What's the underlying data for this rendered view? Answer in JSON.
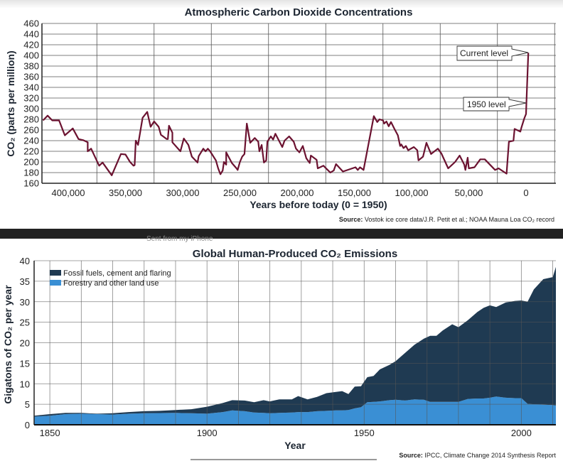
{
  "banner": {
    "text": "Sent from my iPhone",
    "color": "#222222"
  },
  "chart_data": [
    {
      "type": "line",
      "title": "Atmospheric Carbon Dioxide Concentrations",
      "xlabel": "Years before today (0 = 1950)",
      "ylabel": "CO₂ (parts per million)",
      "source_label": "Source:",
      "source": "Vostok ice core data/J.R. Petit et al.; NOAA Mauna Loa CO₂ record",
      "x_unit_note": "x values in thousands of years before 1950",
      "xlim": [
        423,
        -26
      ],
      "ylim": [
        160,
        460
      ],
      "grid": true,
      "line_color": "#6b1230",
      "x_ticks": [
        400,
        350,
        300,
        250,
        200,
        150,
        100,
        50,
        0
      ],
      "x_tick_labels": [
        "400,000",
        "350,000",
        "300,000",
        "250,000",
        "200,000",
        "150,000",
        "100,000",
        "50,000",
        "0"
      ],
      "y_ticks": [
        "160",
        "180",
        "200",
        "220",
        "240",
        "260",
        "280",
        "300",
        "320",
        "340",
        "360",
        "380",
        "400",
        "420",
        "440",
        "460"
      ],
      "annotations": [
        {
          "text": "Current level",
          "x": -2,
          "y": 405
        },
        {
          "text": "1950 level",
          "x": 0,
          "y": 310
        }
      ],
      "x": [
        422,
        418,
        414,
        408,
        403,
        396,
        391,
        387,
        383,
        383,
        380,
        373,
        370,
        362,
        354,
        350,
        346,
        343,
        342,
        341,
        339,
        335,
        331,
        328,
        325,
        321,
        319,
        314,
        313,
        312,
        309,
        309,
        302,
        299,
        295,
        292,
        287,
        286,
        282,
        280,
        278,
        276,
        271,
        269,
        267,
        265,
        264,
        262,
        262,
        257,
        253,
        252,
        250,
        248,
        246,
        244,
        241,
        237,
        234,
        233,
        231,
        229,
        227,
        226,
        223,
        221,
        219,
        213,
        211,
        207,
        203,
        201,
        198,
        195,
        192,
        189,
        188,
        183,
        182,
        177,
        171,
        168,
        166,
        160,
        149,
        147,
        145,
        142,
        133,
        130,
        128,
        125,
        124,
        122,
        120,
        118,
        115,
        112,
        110,
        109,
        107,
        105,
        103,
        98,
        95,
        94,
        90,
        87,
        83,
        77,
        74,
        68,
        62,
        58,
        54,
        53,
        51,
        50,
        45,
        40,
        36,
        27,
        24,
        17,
        15,
        11,
        10,
        5,
        4,
        1.5,
        0,
        -0.3,
        -2
      ],
      "y": [
        278,
        287,
        278,
        278,
        250,
        263,
        243,
        241,
        237,
        220,
        225,
        193,
        199,
        175,
        215,
        214,
        200,
        193,
        194,
        240,
        232,
        283,
        294,
        266,
        276,
        266,
        251,
        243,
        243,
        268,
        255,
        237,
        220,
        244,
        232,
        210,
        199,
        211,
        225,
        220,
        225,
        220,
        203,
        188,
        177,
        184,
        200,
        195,
        218,
        198,
        188,
        185,
        200,
        210,
        215,
        272,
        236,
        245,
        238,
        220,
        232,
        199,
        203,
        238,
        248,
        242,
        253,
        228,
        240,
        248,
        238,
        225,
        218,
        230,
        207,
        198,
        212,
        204,
        188,
        193,
        180,
        184,
        196,
        182,
        190,
        185,
        190,
        185,
        286,
        275,
        280,
        278,
        272,
        276,
        267,
        275,
        262,
        250,
        230,
        233,
        226,
        230,
        222,
        228,
        222,
        203,
        210,
        236,
        215,
        225,
        216,
        188,
        200,
        212,
        195,
        185,
        208,
        188,
        190,
        205,
        205,
        185,
        188,
        178,
        238,
        240,
        262,
        257,
        265,
        282,
        290,
        310,
        405
      ]
    },
    {
      "type": "area",
      "stacked": true,
      "title": "Global Human-Produced CO₂ Emissions",
      "xlabel": "Year",
      "ylabel": "Gigatons of CO₂ per year",
      "source_label": "Source:",
      "source": "IPCC, Climate Change 2014 Synthesis Report",
      "xlim": [
        1845,
        2011
      ],
      "ylim": [
        0,
        40
      ],
      "grid": true,
      "legend_position": "top-left",
      "x_ticks": [
        "1850",
        "1900",
        "1950",
        "2000"
      ],
      "y_ticks": [
        "0",
        "5",
        "10",
        "15",
        "20",
        "25",
        "30",
        "35",
        "40"
      ],
      "x": [
        1845,
        1850,
        1855,
        1860,
        1865,
        1870,
        1875,
        1880,
        1885,
        1890,
        1895,
        1900,
        1905,
        1908,
        1912,
        1915,
        1918,
        1920,
        1923,
        1927,
        1929,
        1932,
        1935,
        1938,
        1941,
        1943,
        1945,
        1947,
        1949,
        1951,
        1953,
        1955,
        1958,
        1960,
        1963,
        1966,
        1969,
        1971,
        1973,
        1975,
        1978,
        1980,
        1983,
        1986,
        1988,
        1990,
        1992,
        1995,
        1998,
        2000,
        2002,
        2004,
        2007,
        2010,
        2011
      ],
      "series": [
        {
          "name": "Forestry and other land use",
          "color": "#3a8fd4",
          "values": [
            2.0,
            2.2,
            2.6,
            2.7,
            2.6,
            2.5,
            2.7,
            2.8,
            2.85,
            2.9,
            2.8,
            2.7,
            3.1,
            3.5,
            3.3,
            3.0,
            2.9,
            2.8,
            2.9,
            3.0,
            3.1,
            3.1,
            3.3,
            3.4,
            3.5,
            3.5,
            3.6,
            4.0,
            4.3,
            5.5,
            5.6,
            5.7,
            6.0,
            6.1,
            5.9,
            6.2,
            6.1,
            5.6,
            5.6,
            5.6,
            5.6,
            5.6,
            6.3,
            6.4,
            6.4,
            6.6,
            6.9,
            6.6,
            6.5,
            6.5,
            5.1,
            5.0,
            4.9,
            4.8,
            4.7
          ]
        },
        {
          "name": "Fossil fuels, cement and flaring",
          "color": "#1f3a52",
          "values": [
            0.2,
            0.4,
            0.3,
            0.2,
            0.1,
            0.3,
            0.4,
            0.5,
            0.55,
            0.7,
            1.0,
            1.7,
            2.2,
            2.5,
            2.6,
            2.5,
            3.1,
            2.9,
            3.3,
            3.2,
            3.9,
            3.1,
            3.5,
            4.3,
            4.5,
            4.7,
            3.9,
            5.3,
            5.1,
            6.1,
            6.3,
            7.8,
            8.6,
            9.4,
            11.6,
            13.3,
            14.9,
            16.1,
            16.1,
            17.4,
            18.9,
            18.2,
            19.2,
            21.1,
            22.1,
            22.5,
            21.8,
            23.2,
            23.7,
            23.8,
            24.9,
            28.0,
            30.6,
            31.2,
            33.8
          ]
        }
      ]
    }
  ]
}
